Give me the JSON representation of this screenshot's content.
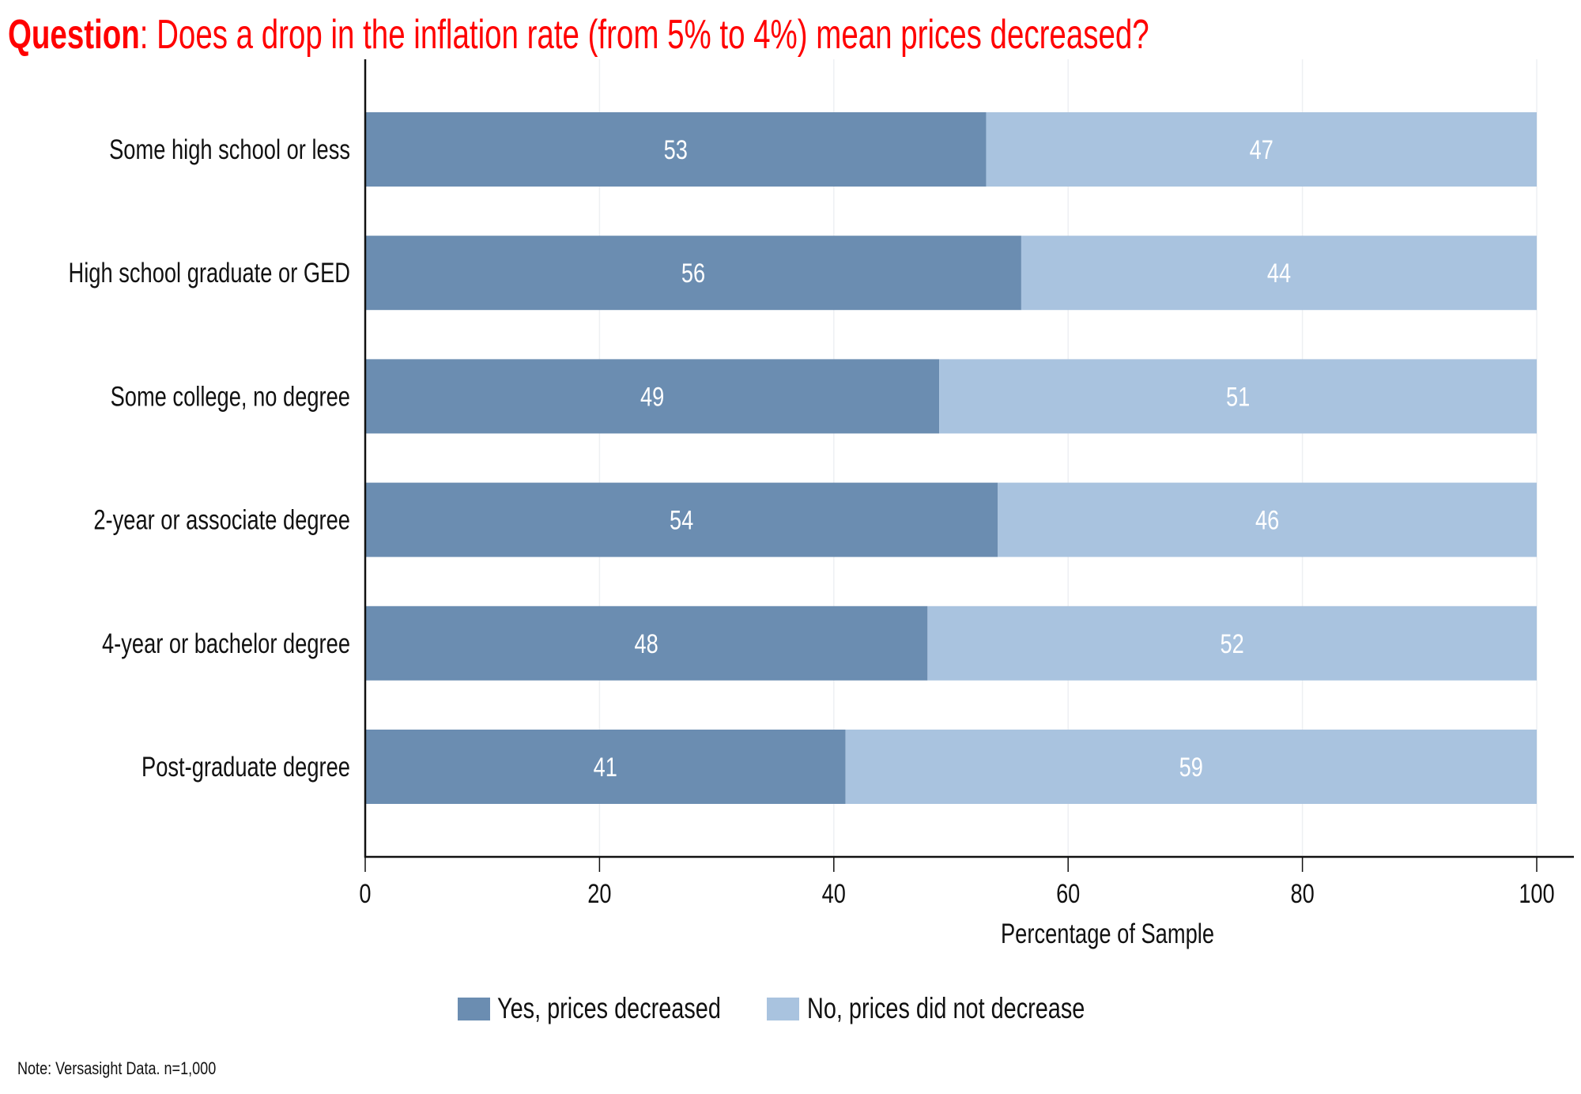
{
  "title": {
    "prefix": "Question",
    "text": ": Does a drop in the inflation rate (from 5% to 4%) mean prices decreased?",
    "color": "#ff0000"
  },
  "note": "Note: Versasight Data. n=1,000",
  "chart_data": {
    "type": "bar",
    "orientation": "horizontal",
    "stacked": true,
    "title": "Question: Does a drop in the inflation rate (from 5% to 4%) mean prices decreased?",
    "xlabel": "Percentage of Sample",
    "ylabel": "",
    "xlim": [
      0,
      100
    ],
    "xticks": [
      0,
      20,
      40,
      60,
      80,
      100
    ],
    "xtick_labels": [
      "0",
      "20",
      "40",
      "60",
      "80",
      "100"
    ],
    "grid": "vertical gridlines at ticks (faint)",
    "legend_position": "bottom-center",
    "categories": [
      "Some high school or less",
      "High school graduate or GED",
      "Some college, no degree",
      "2-year or associate degree",
      "4-year or bachelor degree",
      "Post-graduate degree"
    ],
    "series": [
      {
        "name": "Yes, prices decreased",
        "color": "#6b8db1",
        "values": [
          53,
          56,
          49,
          54,
          48,
          41
        ]
      },
      {
        "name": "No, prices did not decrease",
        "color": "#a9c3df",
        "values": [
          47,
          44,
          51,
          46,
          52,
          59
        ]
      }
    ]
  }
}
